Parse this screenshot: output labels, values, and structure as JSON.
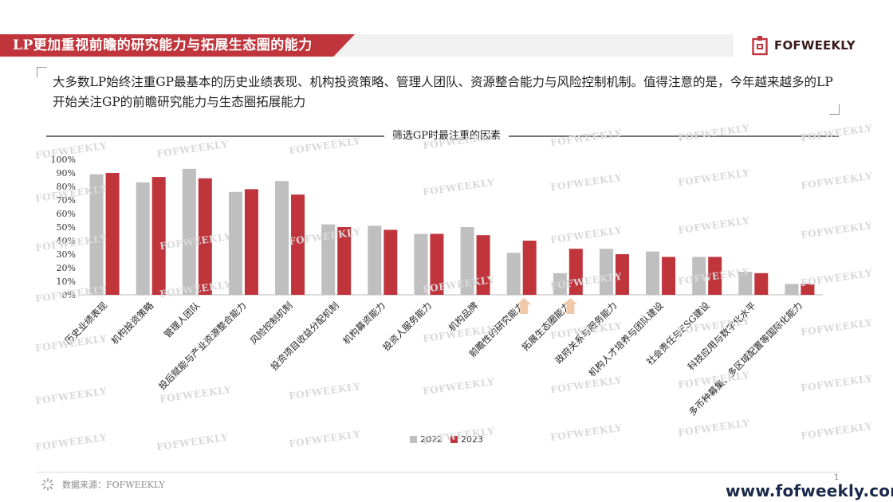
{
  "header": {
    "title": "LP更加重视前瞻的研究能力与拓展生态圈的能力",
    "logo_text": "FOFWEEKLY"
  },
  "description": "大多数LP始终注重GP最基本的历史业绩表现、机构投资策略、管理人团队、资源整合能力与风险控制机制。值得注意的是，今年越来越多的LP开始关注GP的前瞻研究能力与生态圈拓展能力",
  "chart_title": "筛选GP时最注重的因素",
  "chart_data": {
    "type": "bar",
    "title": "筛选GP时最注重的因素",
    "categories": [
      "历史业绩表现",
      "机构投资策略",
      "管理人团队",
      "投后赋能与产业资源整合能力",
      "风险控制机制",
      "投资项目收益分配机制",
      "机构募资能力",
      "投资人服务能力",
      "机构品牌",
      "前瞻性的研究能力",
      "拓展生态圈能力",
      "政府关系与服务能力",
      "机构人才培养与团队建设",
      "社会责任与ESG建设",
      "科技应用与数字化水平",
      "多币种募集、多区域配置等国际化能力"
    ],
    "series": [
      {
        "name": "2022",
        "color": "#bfbfbf",
        "values": [
          89,
          83,
          93,
          76,
          84,
          52,
          51,
          45,
          50,
          31,
          16,
          34,
          32,
          28,
          17,
          8
        ]
      },
      {
        "name": "2023",
        "color": "#c0343b",
        "values": [
          90,
          87,
          86,
          78,
          74,
          50,
          48,
          45,
          44,
          40,
          34,
          30,
          28,
          28,
          16,
          8
        ]
      }
    ],
    "ylim": [
      0,
      100
    ],
    "yticks": [
      "0%",
      "10%",
      "20%",
      "30%",
      "40%",
      "50%",
      "60%",
      "70%",
      "80%",
      "90%",
      "100%"
    ],
    "highlight_categories": [
      "前瞻性的研究能力",
      "拓展生态圈能力"
    ],
    "highlight_color": "#f2c9a8",
    "legend_position": "bottom",
    "grid": false
  },
  "legend": {
    "label_2022": "2022",
    "label_2023": "2023",
    "color_2022": "#bfbfbf",
    "color_2023": "#c0343b"
  },
  "footer": {
    "source": "数据来源：FOFWEEKLY",
    "page_number": "1",
    "url": "www.fofweekly.com"
  },
  "watermark": "FOFWEEKLY",
  "colors": {
    "brand_red": "#c0343b",
    "gray": "#bfbfbf"
  }
}
